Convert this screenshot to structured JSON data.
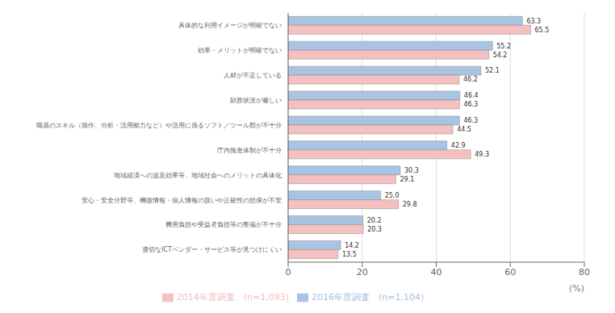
{
  "chart_data": {
    "type": "bar",
    "orientation": "horizontal",
    "categories": [
      "具体的な利用イメージが明確でない",
      "効果・メリットが明確でない",
      "人材が不足している",
      "財政状況が厳しい",
      "職員のスキル（操作、分析・活用能力など）や活用に係るソフト／ツール類が不十分",
      "庁内推進体制が不十分",
      "地域経済への波及効果等、地域社会へのメリットの具体化",
      "安心・安全分野等、機微情報・個人情報の扱いや正確性の担保が不安",
      "費用負担や受益者負担等の整備が不十分",
      "適切なICTベンダー・サービス等が見つけにくい"
    ],
    "series": [
      {
        "name": "2016年度調査　(n=1,104)",
        "color": "#a8c4e0",
        "values": [
          63.3,
          55.2,
          52.1,
          46.4,
          46.3,
          42.9,
          30.3,
          25.0,
          20.2,
          14.2
        ],
        "value_labels": [
          "63.3",
          "55.2",
          "52.1",
          "46.4",
          "46.3",
          "42.9",
          "30.3",
          "25.0",
          "20.2",
          "14.2"
        ]
      },
      {
        "name": "2014年度調査　(n=1,093)",
        "color": "#f5c0c0",
        "values": [
          65.5,
          54.2,
          46.2,
          46.3,
          44.5,
          49.3,
          29.1,
          29.8,
          20.3,
          13.5
        ],
        "value_labels": [
          "65.5",
          "54.2",
          "46.2",
          "46.3",
          "44.5",
          "49.3",
          "29.1",
          "29.8",
          "20.3",
          "13.5"
        ]
      }
    ],
    "xlim": [
      0,
      80
    ],
    "xticks": [
      0,
      20,
      40,
      60,
      80
    ],
    "xlabel": "(%)",
    "grid": true,
    "legend": "lower center",
    "data_labels": true
  }
}
